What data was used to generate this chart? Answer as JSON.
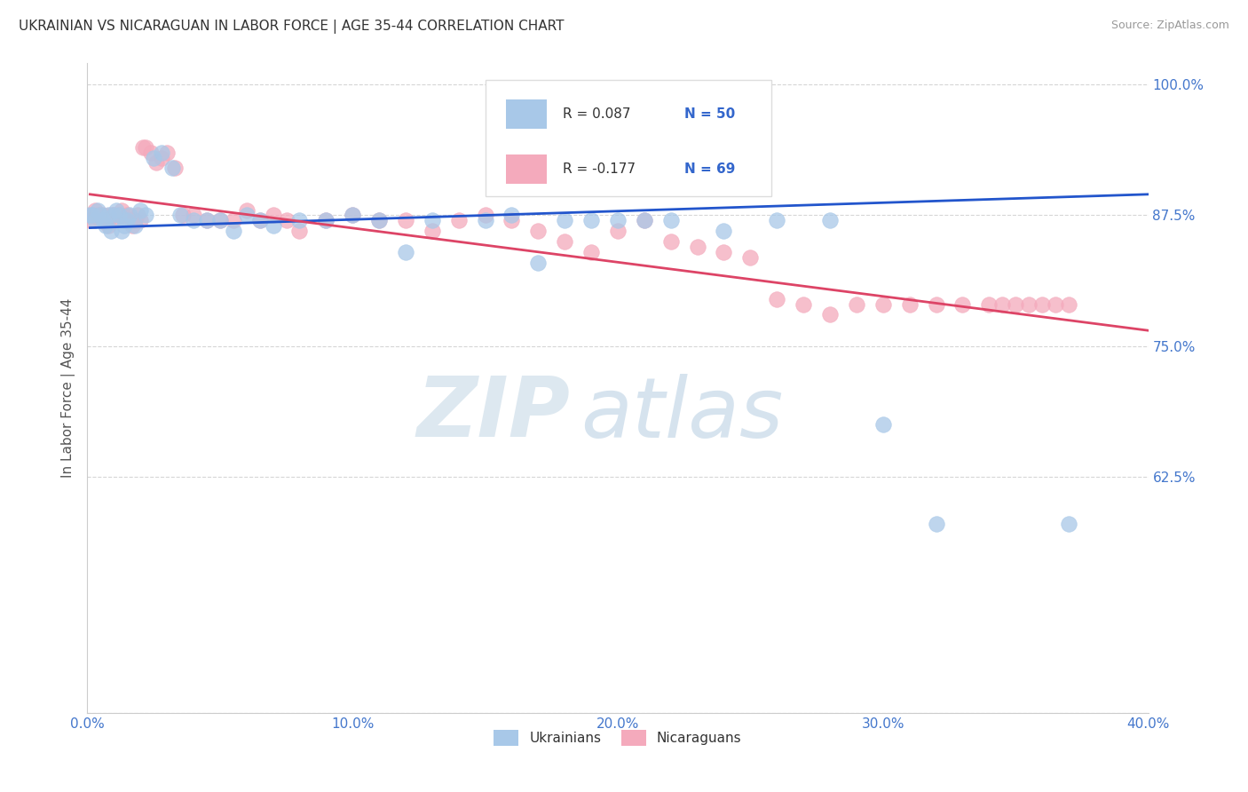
{
  "title": "UKRAINIAN VS NICARAGUAN IN LABOR FORCE | AGE 35-44 CORRELATION CHART",
  "source": "Source: ZipAtlas.com",
  "ylabel": "In Labor Force | Age 35-44",
  "xlim": [
    0.0,
    0.4
  ],
  "ylim": [
    0.4,
    1.02
  ],
  "xtick_labels": [
    "0.0%",
    "10.0%",
    "20.0%",
    "30.0%",
    "40.0%"
  ],
  "xtick_vals": [
    0.0,
    0.1,
    0.2,
    0.3,
    0.4
  ],
  "ytick_labels": [
    "100.0%",
    "87.5%",
    "75.0%",
    "62.5%",
    ""
  ],
  "ytick_vals": [
    1.0,
    0.875,
    0.75,
    0.625,
    0.4
  ],
  "watermark_zip": "ZIP",
  "watermark_atlas": "atlas",
  "legend_r_ukrainian": "R = 0.087",
  "legend_n_ukrainian": "N = 50",
  "legend_r_nicaraguan": "R = -0.177",
  "legend_n_nicaraguan": "N = 69",
  "ukrainian_color": "#a8c8e8",
  "nicaraguan_color": "#f4aabc",
  "trend_ukrainian_color": "#2255cc",
  "trend_nicaraguan_color": "#dd4466",
  "ukrainian_x": [
    0.001,
    0.002,
    0.003,
    0.004,
    0.005,
    0.006,
    0.007,
    0.008,
    0.009,
    0.01,
    0.011,
    0.012,
    0.013,
    0.014,
    0.015,
    0.016,
    0.018,
    0.02,
    0.022,
    0.025,
    0.028,
    0.032,
    0.035,
    0.04,
    0.045,
    0.05,
    0.055,
    0.06,
    0.065,
    0.07,
    0.08,
    0.09,
    0.1,
    0.11,
    0.12,
    0.13,
    0.15,
    0.16,
    0.17,
    0.18,
    0.19,
    0.2,
    0.21,
    0.22,
    0.24,
    0.26,
    0.28,
    0.3,
    0.32,
    0.37
  ],
  "ukrainian_y": [
    0.875,
    0.875,
    0.87,
    0.88,
    0.875,
    0.87,
    0.865,
    0.875,
    0.86,
    0.875,
    0.88,
    0.875,
    0.86,
    0.865,
    0.87,
    0.875,
    0.865,
    0.88,
    0.875,
    0.93,
    0.935,
    0.92,
    0.875,
    0.87,
    0.87,
    0.87,
    0.86,
    0.875,
    0.87,
    0.865,
    0.87,
    0.87,
    0.875,
    0.87,
    0.84,
    0.87,
    0.87,
    0.875,
    0.83,
    0.87,
    0.87,
    0.87,
    0.87,
    0.87,
    0.86,
    0.87,
    0.87,
    0.675,
    0.58,
    0.58
  ],
  "nicaraguan_x": [
    0.001,
    0.002,
    0.003,
    0.004,
    0.005,
    0.006,
    0.007,
    0.008,
    0.009,
    0.01,
    0.011,
    0.012,
    0.013,
    0.014,
    0.015,
    0.016,
    0.017,
    0.018,
    0.019,
    0.02,
    0.021,
    0.022,
    0.024,
    0.026,
    0.028,
    0.03,
    0.033,
    0.036,
    0.04,
    0.045,
    0.05,
    0.055,
    0.06,
    0.065,
    0.07,
    0.075,
    0.08,
    0.09,
    0.1,
    0.11,
    0.12,
    0.13,
    0.14,
    0.15,
    0.16,
    0.17,
    0.18,
    0.19,
    0.2,
    0.21,
    0.22,
    0.23,
    0.24,
    0.25,
    0.26,
    0.27,
    0.28,
    0.29,
    0.3,
    0.31,
    0.32,
    0.33,
    0.34,
    0.345,
    0.35,
    0.355,
    0.36,
    0.365,
    0.37
  ],
  "nicaraguan_y": [
    0.87,
    0.875,
    0.88,
    0.875,
    0.87,
    0.875,
    0.87,
    0.865,
    0.875,
    0.875,
    0.87,
    0.875,
    0.88,
    0.87,
    0.875,
    0.87,
    0.865,
    0.87,
    0.875,
    0.87,
    0.94,
    0.94,
    0.935,
    0.925,
    0.93,
    0.935,
    0.92,
    0.875,
    0.875,
    0.87,
    0.87,
    0.87,
    0.88,
    0.87,
    0.875,
    0.87,
    0.86,
    0.87,
    0.875,
    0.87,
    0.87,
    0.86,
    0.87,
    0.875,
    0.87,
    0.86,
    0.85,
    0.84,
    0.86,
    0.87,
    0.85,
    0.845,
    0.84,
    0.835,
    0.795,
    0.79,
    0.78,
    0.79,
    0.79,
    0.79,
    0.79,
    0.79,
    0.79,
    0.79,
    0.79,
    0.79,
    0.79,
    0.79,
    0.79
  ]
}
